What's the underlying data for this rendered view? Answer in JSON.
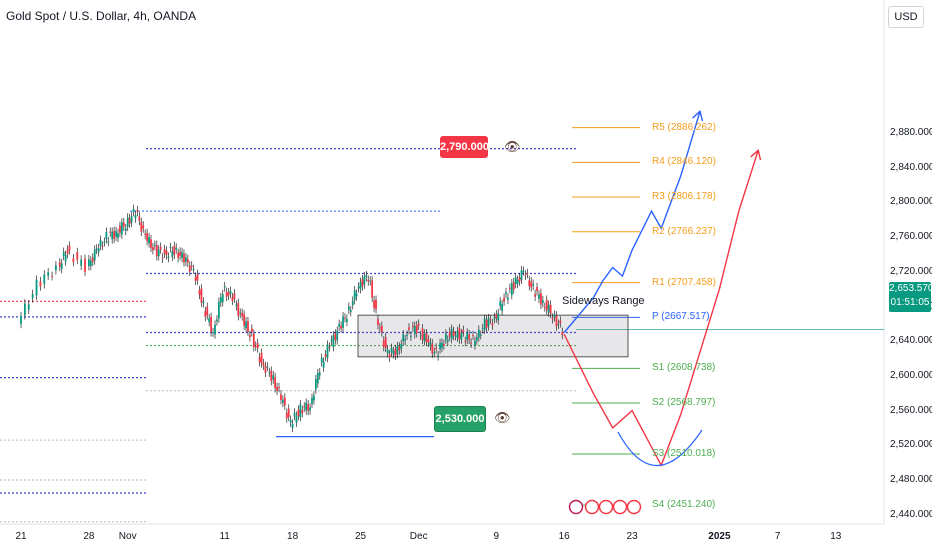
{
  "header": {
    "title": "Gold Spot / U.S. Dollar, 4h, OANDA",
    "currency": "USD"
  },
  "price": {
    "current": "2,653.570",
    "countdown": "01:51:05"
  },
  "annotations": {
    "resistance_tag": "2,790.000",
    "support_tag": "2,530.000",
    "range_label": "Sideways Range",
    "eye_icon": "eye-icon"
  },
  "pivots": [
    {
      "label": "R5 (2886.262)",
      "level": 2886.262,
      "color": "#f59c1a"
    },
    {
      "label": "R4 (2846.120)",
      "level": 2846.12,
      "color": "#f59c1a"
    },
    {
      "label": "R3 (2806.178)",
      "level": 2806.178,
      "color": "#f59c1a"
    },
    {
      "label": "R2 (2766.237)",
      "level": 2766.237,
      "color": "#f59c1a"
    },
    {
      "label": "R1 (2707.458)",
      "level": 2707.458,
      "color": "#f59c1a"
    },
    {
      "label": "P (2667.517)",
      "level": 2667.517,
      "color": "#2962ff"
    },
    {
      "label": "S1 (2608.738)",
      "level": 2608.738,
      "color": "#4caf50"
    },
    {
      "label": "S2 (2568.797)",
      "level": 2568.797,
      "color": "#4caf50"
    },
    {
      "label": "S3 (2510.018)",
      "level": 2510.018,
      "color": "#4caf50"
    },
    {
      "label": "S4 (2451.240)",
      "level": 2451.24,
      "color": "#4caf50"
    }
  ],
  "chart_data": {
    "type": "line",
    "title": "Gold Spot / U.S. Dollar, 4h, OANDA",
    "xlabel": "",
    "ylabel": "",
    "ylim": [
      2425,
      2905
    ],
    "y_ticks": [
      "2,880.000",
      "2,840.000",
      "2,800.000",
      "2,760.000",
      "2,720.000",
      "2,680.000",
      "2,640.000",
      "2,600.000",
      "2,560.000",
      "2,520.000",
      "2,480.000",
      "2,440.000"
    ],
    "x_ticks": [
      {
        "label": "21",
        "day": 0
      },
      {
        "label": "28",
        "day": 7
      },
      {
        "label": "Nov",
        "day": 11
      },
      {
        "label": "11",
        "day": 21
      },
      {
        "label": "18",
        "day": 28
      },
      {
        "label": "25",
        "day": 35
      },
      {
        "label": "Dec",
        "day": 41
      },
      {
        "label": "9",
        "day": 49
      },
      {
        "label": "16",
        "day": 56
      },
      {
        "label": "23",
        "day": 63
      },
      {
        "label": "2025",
        "day": 72,
        "bold": true
      },
      {
        "label": "7",
        "day": 78
      },
      {
        "label": "13",
        "day": 84
      }
    ],
    "price_path": [
      [
        0,
        2660
      ],
      [
        2,
        2705
      ],
      [
        4,
        2725
      ],
      [
        5,
        2745
      ],
      [
        7,
        2725
      ],
      [
        8,
        2745
      ],
      [
        9,
        2760
      ],
      [
        10,
        2765
      ],
      [
        11,
        2775
      ],
      [
        12,
        2790
      ],
      [
        13,
        2760
      ],
      [
        14,
        2745
      ],
      [
        15,
        2740
      ],
      [
        16,
        2745
      ],
      [
        17,
        2735
      ],
      [
        18,
        2720
      ],
      [
        19,
        2680
      ],
      [
        20,
        2650
      ],
      [
        21,
        2700
      ],
      [
        22,
        2690
      ],
      [
        23,
        2665
      ],
      [
        24,
        2645
      ],
      [
        25,
        2615
      ],
      [
        26,
        2600
      ],
      [
        27,
        2575
      ],
      [
        28,
        2545
      ],
      [
        29,
        2562
      ],
      [
        30,
        2565
      ],
      [
        31,
        2610
      ],
      [
        32,
        2635
      ],
      [
        33,
        2655
      ],
      [
        34,
        2675
      ],
      [
        35,
        2705
      ],
      [
        36,
        2715
      ],
      [
        37,
        2660
      ],
      [
        38,
        2625
      ],
      [
        39,
        2630
      ],
      [
        40,
        2650
      ],
      [
        41,
        2655
      ],
      [
        42,
        2640
      ],
      [
        43,
        2625
      ],
      [
        44,
        2645
      ],
      [
        45,
        2650
      ],
      [
        46,
        2645
      ],
      [
        47,
        2640
      ],
      [
        48,
        2660
      ],
      [
        49,
        2665
      ],
      [
        50,
        2690
      ],
      [
        51,
        2705
      ],
      [
        52,
        2720
      ],
      [
        53,
        2700
      ],
      [
        54,
        2685
      ],
      [
        55,
        2670
      ],
      [
        56,
        2652
      ]
    ],
    "horizontal_levels": [
      {
        "name": "2,790.000",
        "value": 2790
      },
      {
        "name": "2,530.000",
        "value": 2530
      }
    ],
    "sideways_range": {
      "from_day": 35,
      "to_day": 58,
      "low": 2622,
      "high": 2670
    },
    "projections": [
      {
        "name": "bullish",
        "color": "#2962ff",
        "points": [
          [
            56,
            2650
          ],
          [
            59,
            2690
          ],
          [
            60,
            2710
          ],
          [
            61,
            2725
          ],
          [
            62,
            2715
          ],
          [
            63,
            2745
          ],
          [
            65,
            2790
          ],
          [
            66,
            2770
          ],
          [
            68,
            2830
          ],
          [
            70,
            2905
          ]
        ]
      },
      {
        "name": "bearish",
        "color": "#f23645",
        "points": [
          [
            56,
            2648
          ],
          [
            59,
            2580
          ],
          [
            61,
            2540
          ],
          [
            63,
            2560
          ],
          [
            66,
            2497
          ],
          [
            68,
            2555
          ],
          [
            72,
            2700
          ],
          [
            74,
            2790
          ],
          [
            76,
            2860
          ]
        ]
      }
    ]
  }
}
